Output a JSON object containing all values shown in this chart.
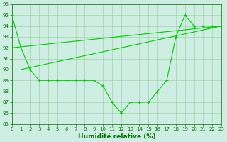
{
  "x": [
    0,
    1,
    2,
    3,
    4,
    5,
    6,
    7,
    8,
    9,
    10,
    11,
    12,
    13,
    14,
    15,
    16,
    17,
    18,
    19,
    20,
    21,
    22,
    23
  ],
  "line1": [
    95,
    92,
    90,
    89,
    89,
    89,
    89,
    89,
    89,
    89,
    88.5,
    87,
    86,
    87,
    87,
    87,
    88,
    89,
    93,
    95,
    94,
    94,
    94,
    94
  ],
  "line2_x": [
    0,
    23
  ],
  "line2_y": [
    92,
    94
  ],
  "line3_x": [
    1,
    23
  ],
  "line3_y": [
    90,
    94
  ],
  "line_color": "#00cc00",
  "bg_color": "#ceeee4",
  "grid_color": "#99cc99",
  "ylim": [
    85,
    96
  ],
  "xlim": [
    0,
    23
  ],
  "yticks": [
    85,
    86,
    87,
    88,
    89,
    90,
    91,
    92,
    93,
    94,
    95,
    96
  ],
  "xticks": [
    0,
    1,
    2,
    3,
    4,
    5,
    6,
    7,
    8,
    9,
    10,
    11,
    12,
    13,
    14,
    15,
    16,
    17,
    18,
    19,
    20,
    21,
    22,
    23
  ],
  "xlabel": "Humidité relative (%)",
  "xlabel_color": "#007700",
  "tick_color": "#007700",
  "tick_fontsize": 5,
  "xlabel_fontsize": 6.5
}
